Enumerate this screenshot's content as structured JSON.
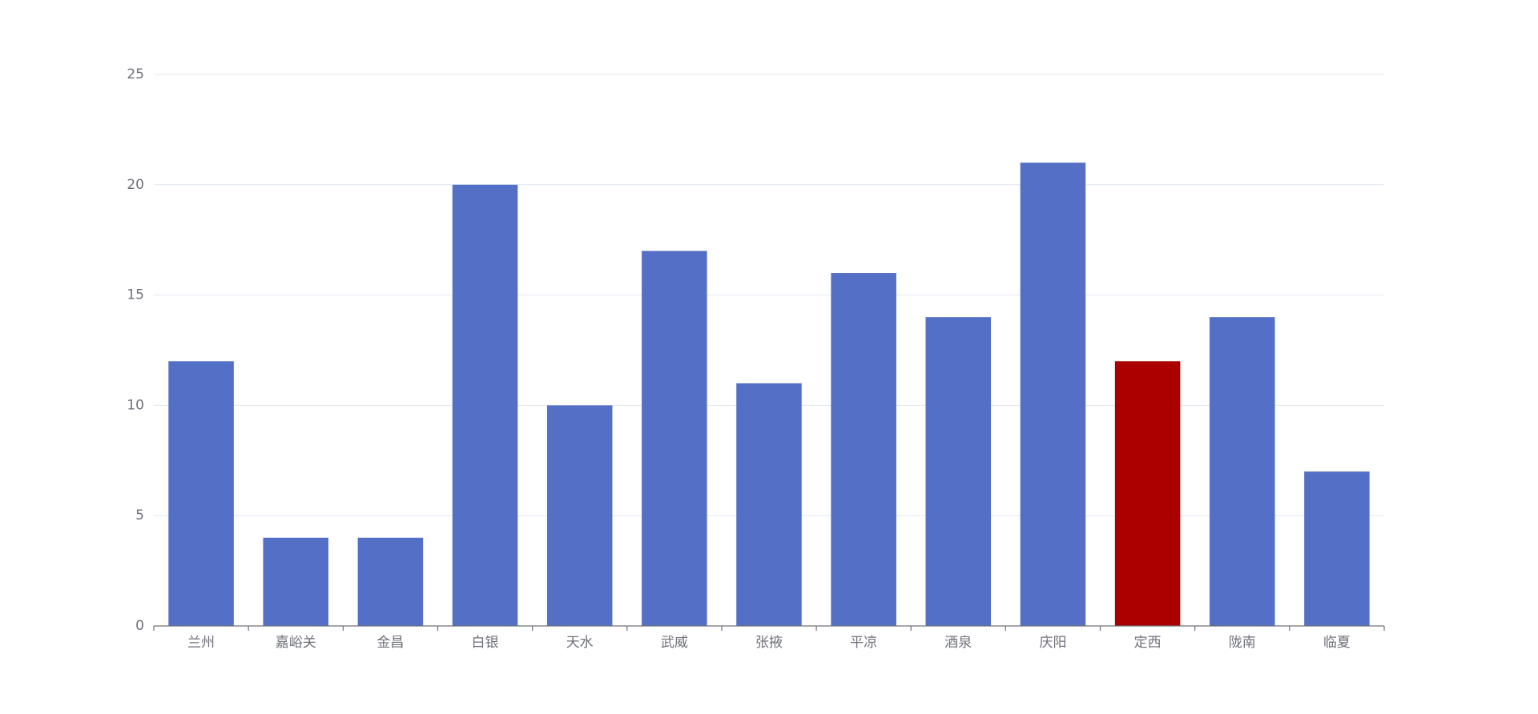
{
  "chart_data": {
    "type": "bar",
    "categories": [
      "兰州",
      "嘉峪关",
      "金昌",
      "白银",
      "天水",
      "武威",
      "张掖",
      "平凉",
      "酒泉",
      "庆阳",
      "定西",
      "陇南",
      "临夏"
    ],
    "values": [
      12,
      4,
      4,
      20,
      10,
      17,
      11,
      16,
      14,
      21,
      12,
      14,
      7
    ],
    "colors": [
      "#5470c6",
      "#5470c6",
      "#5470c6",
      "#5470c6",
      "#5470c6",
      "#5470c6",
      "#5470c6",
      "#5470c6",
      "#5470c6",
      "#5470c6",
      "#aa0000",
      "#5470c6",
      "#5470c6"
    ],
    "ylim": [
      0,
      25
    ],
    "yticks": [
      0,
      5,
      10,
      15,
      20,
      25
    ],
    "grid": true
  }
}
